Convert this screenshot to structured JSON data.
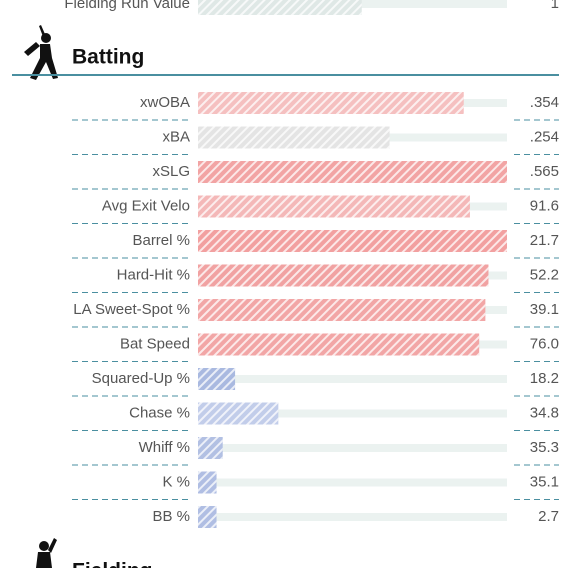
{
  "top_row": {
    "label": "Fielding Run Value",
    "stat": "1",
    "percentile": 53,
    "color": "#dfe8e6"
  },
  "batting": {
    "title": "Batting",
    "rows": [
      {
        "label": "xwOBA",
        "stat": ".354",
        "percentile": 86,
        "color": "#f5c0c0"
      },
      {
        "label": "xBA",
        "stat": ".254",
        "percentile": 62,
        "color": "#e4e4e4"
      },
      {
        "label": "xSLG",
        "stat": ".565",
        "percentile": 100,
        "color": "#f2a4a4"
      },
      {
        "label": "Avg Exit Velo",
        "stat": "91.6",
        "percentile": 88,
        "color": "#f4b8b8"
      },
      {
        "label": "Barrel %",
        "stat": "21.7",
        "percentile": 100,
        "color": "#f2a0a0"
      },
      {
        "label": "Hard-Hit %",
        "stat": "52.2",
        "percentile": 94,
        "color": "#f1a2a2"
      },
      {
        "label": "LA Sweet-Spot %",
        "stat": "39.1",
        "percentile": 93,
        "color": "#f2a6a6"
      },
      {
        "label": "Bat Speed",
        "stat": "76.0",
        "percentile": 91,
        "color": "#f2a6a6"
      },
      {
        "label": "Squared-Up %",
        "stat": "18.2",
        "percentile": 12,
        "color": "#a9b9e0"
      },
      {
        "label": "Chase %",
        "stat": "34.8",
        "percentile": 26,
        "color": "#c2cdea"
      },
      {
        "label": "Whiff %",
        "stat": "35.3",
        "percentile": 8,
        "color": "#b2c0e3"
      },
      {
        "label": "K %",
        "stat": "35.1",
        "percentile": 6,
        "color": "#b0bee3"
      },
      {
        "label": "BB %",
        "stat": "2.7",
        "percentile": 6,
        "color": "#b0bee3"
      }
    ]
  },
  "fielding": {
    "title": "Fielding"
  },
  "percentile_range": [
    0,
    100
  ]
}
